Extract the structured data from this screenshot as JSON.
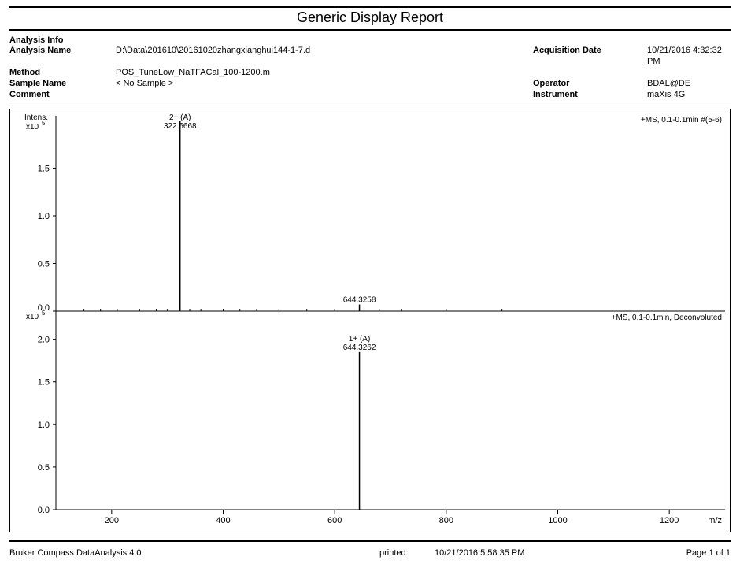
{
  "report": {
    "title": "Generic Display Report"
  },
  "info": {
    "heading": "Analysis Info",
    "left": [
      {
        "label": "Analysis Name",
        "value": "D:\\Data\\201610\\20161020zhangxianghui144-1-7.d"
      },
      {
        "label": "Method",
        "value": "POS_TuneLow_NaTFACal_100-1200.m"
      },
      {
        "label": "Sample Name",
        "value": "< No Sample >"
      },
      {
        "label": "Comment",
        "value": ""
      }
    ],
    "right": [
      {
        "label": "Acquisition Date",
        "value": "10/21/2016 4:32:32 PM"
      },
      {
        "label": "",
        "value": ""
      },
      {
        "label": "Operator",
        "value": "BDAL@DE"
      },
      {
        "label": "Instrument",
        "value": "maXis 4G"
      }
    ]
  },
  "charts": {
    "x_axis": {
      "label": "m/z",
      "min": 100,
      "max": 1300,
      "ticks": [
        200,
        400,
        600,
        800,
        1000,
        1200
      ],
      "tick_fontsize": 11,
      "label_fontsize": 11,
      "color": "#000000"
    },
    "y_label": "Intens.",
    "y_label_fontsize": 10,
    "top": {
      "corner_label": "+MS, 0.1-0.1min #(5-6)",
      "sci_exponent": "x10",
      "sci_sup": "5",
      "ylim": [
        0,
        2.0
      ],
      "yticks": [
        0.0,
        0.5,
        1.0,
        1.5
      ],
      "ytick_on_axis": "0.0",
      "peaks": [
        {
          "mz": 322.6668,
          "intensity": 2.0,
          "label_top": "2+ (A)",
          "label_val": "322.6668",
          "color": "#000000"
        },
        {
          "mz": 644.3258,
          "intensity": 0.07,
          "label_top": "",
          "label_val": "644.3258",
          "color": "#000000"
        }
      ],
      "noise_mz": [
        150,
        180,
        210,
        250,
        280,
        300,
        340,
        360,
        400,
        430,
        460,
        500,
        550,
        600,
        680,
        720,
        800,
        900
      ],
      "noise_color": "#000000"
    },
    "bottom": {
      "corner_label": "+MS, 0.1-0.1min, Deconvoluted",
      "sci_exponent": "x10",
      "sci_sup": "5",
      "ylim": [
        0,
        2.2
      ],
      "yticks": [
        0.0,
        0.5,
        1.0,
        1.5,
        2.0
      ],
      "peaks": [
        {
          "mz": 644.3262,
          "intensity": 1.85,
          "label_top": "1+ (A)",
          "label_val": "644.3262",
          "color": "#000000"
        }
      ]
    },
    "colors": {
      "axis": "#000000",
      "background": "#ffffff",
      "text": "#000000"
    }
  },
  "footer": {
    "software": "Bruker Compass DataAnalysis 4.0",
    "printed_label": "printed:",
    "printed_value": "10/21/2016 5:58:35 PM",
    "page": "Page 1 of 1"
  }
}
